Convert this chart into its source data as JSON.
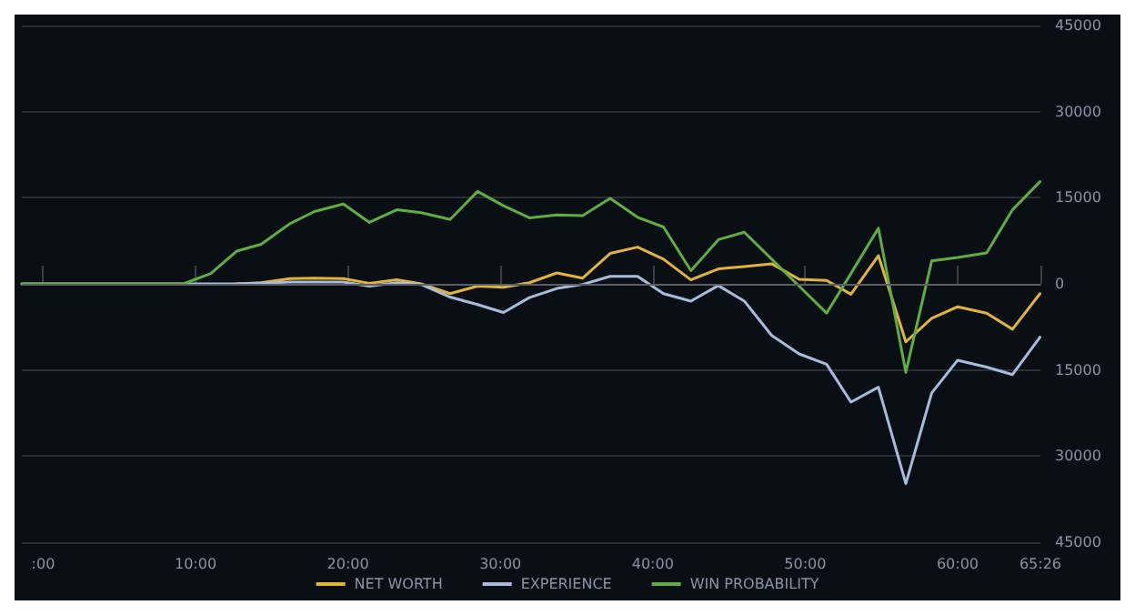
{
  "chart_data": {
    "type": "line",
    "x": [
      -1.4,
      9.2,
      11.0,
      12.7,
      14.3,
      16.2,
      17.8,
      19.7,
      21.4,
      23.2,
      24.8,
      26.7,
      28.5,
      30.2,
      31.9,
      33.7,
      35.4,
      37.2,
      39.0,
      40.7,
      42.5,
      44.3,
      46.0,
      47.8,
      49.6,
      51.4,
      53.0,
      54.8,
      56.6,
      58.3,
      60.0,
      61.9,
      63.6,
      65.4
    ],
    "series": [
      {
        "name": "NET WORTH",
        "color": "#e2b53a",
        "values": [
          null,
          null,
          null,
          0,
          200,
          900,
          1000,
          900,
          100,
          700,
          0,
          -1700,
          -400,
          -600,
          200,
          1900,
          1000,
          5300,
          6400,
          4300,
          700,
          2600,
          3000,
          3500,
          800,
          600,
          -1800,
          4900,
          -10100,
          -6000,
          -4000,
          -5100,
          -7900,
          -1700
        ]
      },
      {
        "name": "EXPERIENCE",
        "color": "#a9bbdb",
        "values": [
          0,
          0,
          0,
          0,
          100,
          300,
          300,
          300,
          -400,
          200,
          -100,
          -2300,
          -3600,
          -5000,
          -2400,
          -800,
          -100,
          1300,
          1300,
          -1700,
          -3000,
          -300,
          -3000,
          -9000,
          -12200,
          -14000,
          -20600,
          -18000,
          -34800,
          -19000,
          -13300,
          -14500,
          -15800,
          -9300
        ]
      },
      {
        "name": "WIN PROBABILITY",
        "color": "#5fae42",
        "values": [
          0,
          0,
          1800,
          5700,
          6900,
          10500,
          12600,
          13900,
          10700,
          12900,
          12400,
          11200,
          16100,
          13600,
          11500,
          12000,
          11900,
          14900,
          11600,
          9900,
          2300,
          7700,
          9000,
          4300,
          -400,
          -5100,
          1800,
          9700,
          -15400,
          4000,
          4600,
          5400,
          12900,
          17800
        ]
      }
    ],
    "xlim": [
      -1.4,
      65.43
    ],
    "xticks": [
      {
        "value": 0,
        "label": ":00"
      },
      {
        "value": 10,
        "label": "10:00"
      },
      {
        "value": 20,
        "label": "20:00"
      },
      {
        "value": 30,
        "label": "30:00"
      },
      {
        "value": 40,
        "label": "40:00"
      },
      {
        "value": 50,
        "label": "50:00"
      },
      {
        "value": 60,
        "label": "60:00"
      },
      {
        "value": 65.43,
        "label": "65:26"
      }
    ],
    "ylim": [
      -45000,
      45000
    ],
    "yticks": [
      {
        "value": -45000,
        "label": "45000"
      },
      {
        "value": -30000,
        "label": "30000"
      },
      {
        "value": -15000,
        "label": "15000"
      },
      0,
      15000,
      30000,
      45000
    ],
    "grid": "y",
    "legend": "bottom",
    "marker": "none",
    "line_style": "solid"
  }
}
